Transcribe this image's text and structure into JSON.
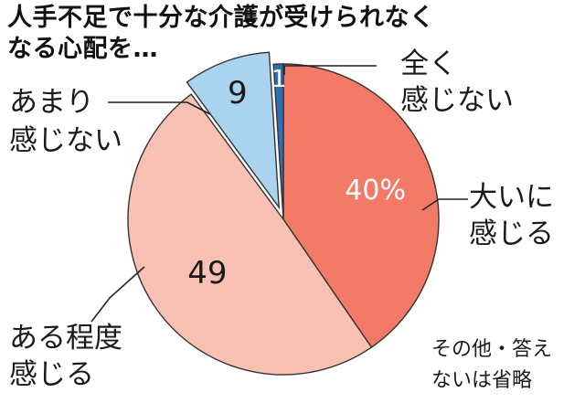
{
  "title": {
    "line1": "人手不足で十分な介護が受けられなく",
    "line2": "なる心配を…"
  },
  "note": {
    "line1": "その他・答え",
    "line2": "ないは省略"
  },
  "colors": {
    "strongly": "#f47a68",
    "somewhat": "#f9c1b3",
    "not_much": "#a9d3ef",
    "not_at_all": "#2f6fb5",
    "stroke": "#ffffff",
    "text": "#1a1a1a"
  },
  "chart_data": {
    "type": "pie",
    "start_angle_deg": 0,
    "direction": "clockwise",
    "slices": [
      {
        "label_line1": "大いに",
        "label_line2": "感じる",
        "value": 40,
        "value_label": "40%",
        "color": "#f47a68"
      },
      {
        "label_line1": "ある程度",
        "label_line2": "感じる",
        "value": 49,
        "value_label": "49",
        "color": "#f9c1b3"
      },
      {
        "label_line1": "あまり",
        "label_line2": "感じない",
        "value": 9,
        "value_label": "9",
        "color": "#a9d3ef"
      },
      {
        "label_line1": "全く",
        "label_line2": "感じない",
        "value": 1,
        "value_label": "1",
        "color": "#2f6fb5"
      }
    ]
  }
}
